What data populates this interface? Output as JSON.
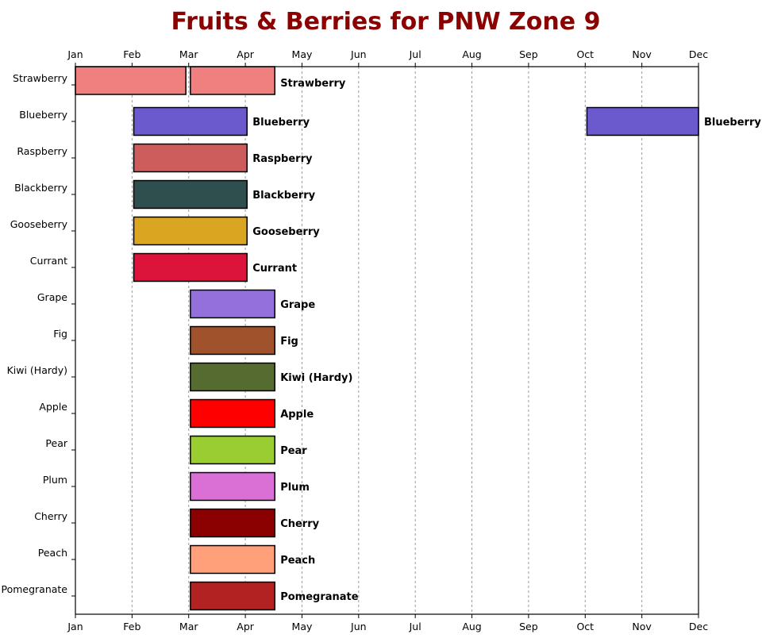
{
  "chart_data": {
    "type": "bar",
    "orientation": "horizontal",
    "title": "Fruits & Berries for PNW Zone 9",
    "xlabel": "",
    "ylabel": "",
    "x_ticks": [
      "Jan",
      "Feb",
      "Mar",
      "Apr",
      "May",
      "Jun",
      "Jul",
      "Aug",
      "Sep",
      "Oct",
      "Nov",
      "Dec"
    ],
    "xlim": [
      1,
      12
    ],
    "x_ticks_top_and_bottom": true,
    "grid": "vertical dashed",
    "legend": "none",
    "categories": [
      "Strawberry",
      "Blueberry",
      "Raspberry",
      "Blackberry",
      "Gooseberry",
      "Currant",
      "Grape",
      "Fig",
      "Kiwi (Hardy)",
      "Apple",
      "Pear",
      "Plum",
      "Cherry",
      "Peach",
      "Pomegranate"
    ],
    "series": [
      {
        "category": "Strawberry",
        "label": "Strawberry",
        "color": "#f08080",
        "start": 1.0,
        "end": 2.95,
        "half": "upper"
      },
      {
        "category": "Strawberry",
        "label": "Strawberry",
        "color": "#f08080",
        "start": 3.03,
        "end": 4.52,
        "half": "upper"
      },
      {
        "category": "Blueberry",
        "label": "Blueberry",
        "color": "#6a5acd",
        "start": 2.03,
        "end": 4.03
      },
      {
        "category": "Blueberry",
        "label": "Blueberry",
        "color": "#6a5acd",
        "start": 10.03,
        "end": 12.0
      },
      {
        "category": "Raspberry",
        "label": "Raspberry",
        "color": "#cd5c5c",
        "start": 2.03,
        "end": 4.03
      },
      {
        "category": "Blackberry",
        "label": "Blackberry",
        "color": "#2f4f4f",
        "start": 2.03,
        "end": 4.03
      },
      {
        "category": "Gooseberry",
        "label": "Gooseberry",
        "color": "#daa520",
        "start": 2.03,
        "end": 4.03
      },
      {
        "category": "Currant",
        "label": "Currant",
        "color": "#dc143c",
        "start": 2.03,
        "end": 4.03
      },
      {
        "category": "Grape",
        "label": "Grape",
        "color": "#9370db",
        "start": 3.03,
        "end": 4.52
      },
      {
        "category": "Fig",
        "label": "Fig",
        "color": "#a0522d",
        "start": 3.03,
        "end": 4.52
      },
      {
        "category": "Kiwi (Hardy)",
        "label": "Kiwi (Hardy)",
        "color": "#556b2f",
        "start": 3.03,
        "end": 4.52
      },
      {
        "category": "Apple",
        "label": "Apple",
        "color": "#ff0000",
        "start": 3.03,
        "end": 4.52
      },
      {
        "category": "Pear",
        "label": "Pear",
        "color": "#9acd32",
        "start": 3.03,
        "end": 4.52
      },
      {
        "category": "Plum",
        "label": "Plum",
        "color": "#da70d6",
        "start": 3.03,
        "end": 4.52
      },
      {
        "category": "Cherry",
        "label": "Cherry",
        "color": "#8b0000",
        "start": 3.03,
        "end": 4.52
      },
      {
        "category": "Peach",
        "label": "Peach",
        "color": "#ffa07a",
        "start": 3.03,
        "end": 4.52
      },
      {
        "category": "Pomegranate",
        "label": "Pomegranate",
        "color": "#b22222",
        "start": 3.03,
        "end": 4.52
      }
    ]
  }
}
